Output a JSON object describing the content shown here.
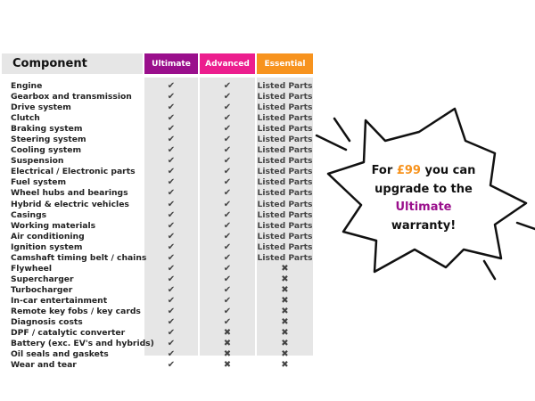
{
  "header": {
    "component": "Component",
    "ultimate": "Ultimate",
    "advanced": "Advanced",
    "essential": "Essential"
  },
  "colors": {
    "ultimate": "#9a0f8c",
    "advanced": "#ec1e8e",
    "essential": "#f7931e",
    "grey": "#e6e6e6"
  },
  "symbols": {
    "check": "✔",
    "cross": "✖"
  },
  "rows": [
    {
      "name": "Engine",
      "u": "check",
      "a": "check",
      "e": "Listed Parts"
    },
    {
      "name": "Gearbox and transmission",
      "u": "check",
      "a": "check",
      "e": "Listed Parts"
    },
    {
      "name": "Drive system",
      "u": "check",
      "a": "check",
      "e": "Listed Parts"
    },
    {
      "name": "Clutch",
      "u": "check",
      "a": "check",
      "e": "Listed Parts"
    },
    {
      "name": "Braking system",
      "u": "check",
      "a": "check",
      "e": "Listed Parts"
    },
    {
      "name": "Steering system",
      "u": "check",
      "a": "check",
      "e": "Listed Parts"
    },
    {
      "name": "Cooling system",
      "u": "check",
      "a": "check",
      "e": "Listed Parts"
    },
    {
      "name": "Suspension",
      "u": "check",
      "a": "check",
      "e": "Listed Parts"
    },
    {
      "name": "Electrical / Electronic parts",
      "u": "check",
      "a": "check",
      "e": "Listed Parts"
    },
    {
      "name": "Fuel system",
      "u": "check",
      "a": "check",
      "e": "Listed Parts"
    },
    {
      "name": "Wheel hubs and bearings",
      "u": "check",
      "a": "check",
      "e": "Listed Parts"
    },
    {
      "name": "Hybrid & electric vehicles",
      "u": "check",
      "a": "check",
      "e": "Listed Parts"
    },
    {
      "name": "Casings",
      "u": "check",
      "a": "check",
      "e": "Listed Parts"
    },
    {
      "name": "Working materials",
      "u": "check",
      "a": "check",
      "e": "Listed Parts"
    },
    {
      "name": "Air conditioning",
      "u": "check",
      "a": "check",
      "e": "Listed Parts"
    },
    {
      "name": "Ignition system",
      "u": "check",
      "a": "check",
      "e": "Listed Parts"
    },
    {
      "name": "Camshaft timing belt / chains",
      "u": "check",
      "a": "check",
      "e": "Listed Parts"
    },
    {
      "name": "Flywheel",
      "u": "check",
      "a": "check",
      "e": "cross"
    },
    {
      "name": "Supercharger",
      "u": "check",
      "a": "check",
      "e": "cross"
    },
    {
      "name": "Turbocharger",
      "u": "check",
      "a": "check",
      "e": "cross"
    },
    {
      "name": "In-car entertainment",
      "u": "check",
      "a": "check",
      "e": "cross"
    },
    {
      "name": "Remote key fobs / key cards",
      "u": "check",
      "a": "check",
      "e": "cross"
    },
    {
      "name": "Diagnosis costs",
      "u": "check",
      "a": "check",
      "e": "cross"
    },
    {
      "name": "DPF / catalytic converter",
      "u": "check",
      "a": "cross",
      "e": "cross"
    },
    {
      "name": "Battery (exc. EV's and hybrids)",
      "u": "check",
      "a": "cross",
      "e": "cross"
    },
    {
      "name": "Oil seals and gaskets",
      "u": "check",
      "a": "cross",
      "e": "cross"
    },
    {
      "name": "Wear and tear",
      "u": "check",
      "a": "cross",
      "e": "cross"
    }
  ],
  "promo": {
    "pre": "For ",
    "price": "£99",
    "post": " you can",
    "line2": "upgrade to the",
    "tier": "Ultimate",
    "line4": "warranty!"
  }
}
